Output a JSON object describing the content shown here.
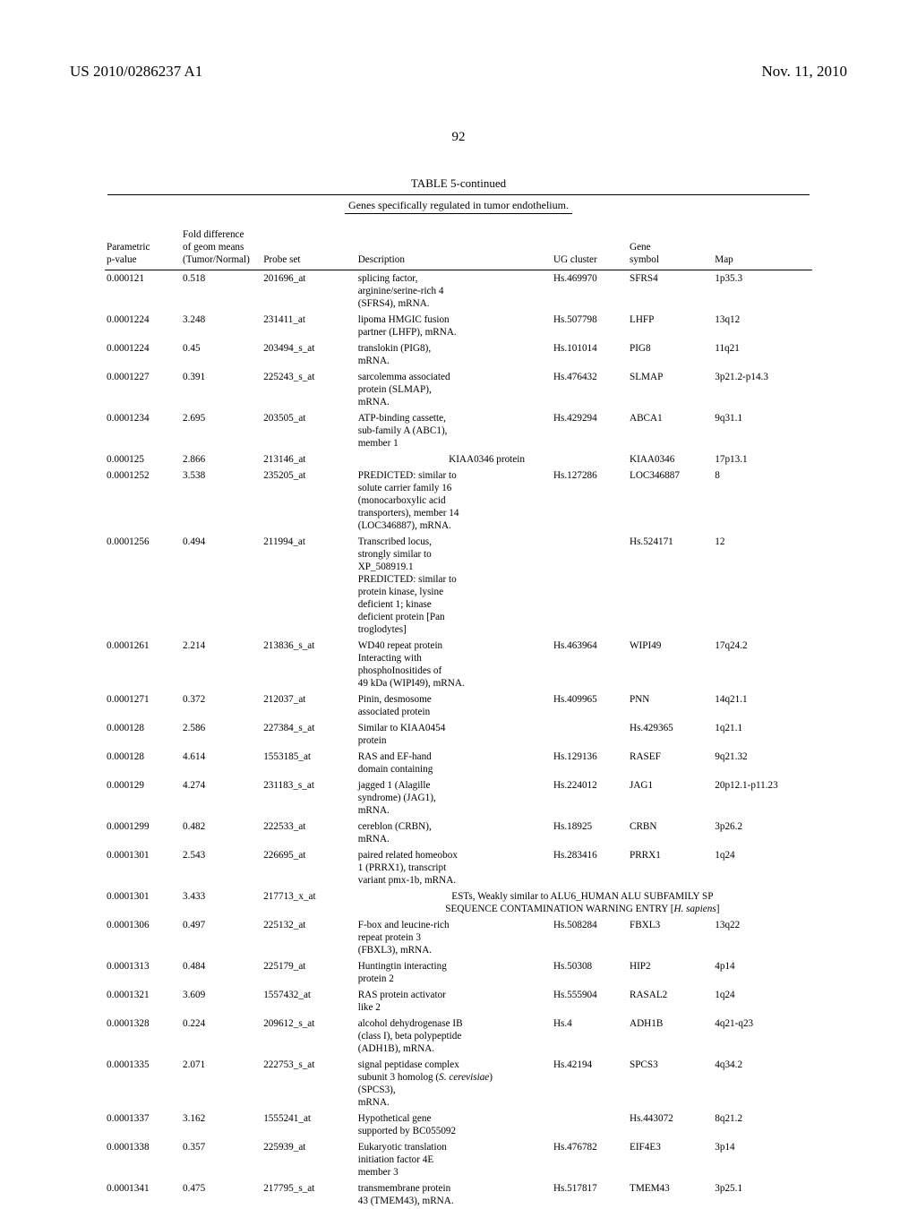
{
  "header": {
    "publication_number": "US 2010/0286237 A1",
    "publication_date": "Nov. 11, 2010",
    "page_number": "92"
  },
  "table": {
    "title": "TABLE 5-continued",
    "subtitle": "Genes specifically regulated in tumor endothelium.",
    "columns": {
      "parametric": "Parametric\np-value",
      "fold": "Fold difference\nof geom means\n(Tumor/Normal)",
      "probe": "Probe set",
      "description": "Description",
      "ugcluster": "UG cluster",
      "gene": "Gene\nsymbol",
      "map": "Map"
    },
    "rows": [
      {
        "p": "0.000121",
        "f": "0.518",
        "probe": "201696_at",
        "desc": "splicing factor,\narginine/serine-rich 4\n(SFRS4), mRNA.",
        "ug": "Hs.469970",
        "gene": "SFRS4",
        "map": "1p35.3"
      },
      {
        "p": "0.0001224",
        "f": "3.248",
        "probe": "231411_at",
        "desc": "lipoma HMGIC fusion\npartner (LHFP), mRNA.",
        "ug": "Hs.507798",
        "gene": "LHFP",
        "map": "13q12"
      },
      {
        "p": "0.0001224",
        "f": "0.45",
        "probe": "203494_s_at",
        "desc": "translokin (PIG8),\nmRNA.",
        "ug": "Hs.101014",
        "gene": "PIG8",
        "map": "11q21"
      },
      {
        "p": "0.0001227",
        "f": "0.391",
        "probe": "225243_s_at",
        "desc": "sarcolemma associated\nprotein (SLMAP),\nmRNA.",
        "ug": "Hs.476432",
        "gene": "SLMAP",
        "map": "3p21.2-p14.3"
      },
      {
        "p": "0.0001234",
        "f": "2.695",
        "probe": "203505_at",
        "desc": "ATP-binding cassette,\nsub-family A (ABC1),\nmember 1",
        "ug": "Hs.429294",
        "gene": "ABCA1",
        "map": "9q31.1"
      },
      {
        "p": "0.000125",
        "f": "2.866",
        "probe": "213146_at",
        "desc": "KIAA0346 protein",
        "ug": "",
        "gene": "KIAA0346",
        "map": "17p13.1",
        "desc_centered": true
      },
      {
        "p": "0.0001252",
        "f": "3.538",
        "probe": "235205_at",
        "desc": "PREDICTED: similar to\nsolute carrier family 16\n(monocarboxylic acid\ntransporters), member 14\n(LOC346887), mRNA.",
        "ug": "Hs.127286",
        "gene": "LOC346887",
        "map": "8"
      },
      {
        "p": "0.0001256",
        "f": "0.494",
        "probe": "211994_at",
        "desc": "Transcribed locus,\nstrongly similar to\nXP_508919.1\nPREDICTED: similar to\nprotein kinase, lysine\ndeficient 1; kinase\ndeficient protein [Pan\ntroglodytes]",
        "ug": "",
        "gene": "Hs.524171",
        "map": "12"
      },
      {
        "p": "0.0001261",
        "f": "2.214",
        "probe": "213836_s_at",
        "desc": "WD40 repeat protein\nInteracting with\nphosphoInositides of\n49 kDa (WIPI49), mRNA.",
        "ug": "Hs.463964",
        "gene": "WIPI49",
        "map": "17q24.2"
      },
      {
        "p": "0.0001271",
        "f": "0.372",
        "probe": "212037_at",
        "desc": "Pinin, desmosome\nassociated protein",
        "ug": "Hs.409965",
        "gene": "PNN",
        "map": "14q21.1"
      },
      {
        "p": "0.000128",
        "f": "2.586",
        "probe": "227384_s_at",
        "desc": "Similar to KIAA0454\nprotein",
        "ug": "",
        "gene": "Hs.429365",
        "map": "1q21.1"
      },
      {
        "p": "0.000128",
        "f": "4.614",
        "probe": "1553185_at",
        "desc": "RAS and EF-hand\ndomain containing",
        "ug": "Hs.129136",
        "gene": "RASEF",
        "map": "9q21.32"
      },
      {
        "p": "0.000129",
        "f": "4.274",
        "probe": "231183_s_at",
        "desc": "jagged 1 (Alagille\nsyndrome) (JAG1),\nmRNA.",
        "ug": "Hs.224012",
        "gene": "JAG1",
        "map": "20p12.1-p11.23"
      },
      {
        "p": "0.0001299",
        "f": "0.482",
        "probe": "222533_at",
        "desc": "cereblon (CRBN),\nmRNA.",
        "ug": "Hs.18925",
        "gene": "CRBN",
        "map": "3p26.2"
      },
      {
        "p": "0.0001301",
        "f": "2.543",
        "probe": "226695_at",
        "desc": "paired related homeobox\n1 (PRRX1), transcript\nvariant pmx-1b, mRNA.",
        "ug": "Hs.283416",
        "gene": "PRRX1",
        "map": "1q24"
      },
      {
        "p": "0.0001301",
        "f": "3.433",
        "probe": "217713_x_at",
        "desc": "ESTs, Weakly similar to ALU6_HUMAN ALU SUBFAMILY SP\nSEQUENCE CONTAMINATION WARNING ENTRY [H. sapiens]",
        "spanned": true
      },
      {
        "p": "0.0001306",
        "f": "0.497",
        "probe": "225132_at",
        "desc": "F-box and leucine-rich\nrepeat protein 3\n(FBXL3), mRNA.",
        "ug": "Hs.508284",
        "gene": "FBXL3",
        "map": "13q22"
      },
      {
        "p": "0.0001313",
        "f": "0.484",
        "probe": "225179_at",
        "desc": "Huntingtin interacting\nprotein 2",
        "ug": "Hs.50308",
        "gene": "HIP2",
        "map": "4p14"
      },
      {
        "p": "0.0001321",
        "f": "3.609",
        "probe": "1557432_at",
        "desc": "RAS protein activator\nlike 2",
        "ug": "Hs.555904",
        "gene": "RASAL2",
        "map": "1q24"
      },
      {
        "p": "0.0001328",
        "f": "0.224",
        "probe": "209612_s_at",
        "desc": "alcohol dehydrogenase IB\n(class I), beta polypeptide\n(ADH1B), mRNA.",
        "ug": "Hs.4",
        "gene": "ADH1B",
        "map": "4q21-q23"
      },
      {
        "p": "0.0001335",
        "f": "2.071",
        "probe": "222753_s_at",
        "desc": "signal peptidase complex\nsubunit 3 homolog (S. cerevisiae)\n(SPCS3),\nmRNA.",
        "ug": "Hs.42194",
        "gene": "SPCS3",
        "map": "4q34.2",
        "italic": true
      },
      {
        "p": "0.0001337",
        "f": "3.162",
        "probe": "1555241_at",
        "desc": "Hypothetical gene\nsupported by BC055092",
        "ug": "",
        "gene": "Hs.443072",
        "map": "8q21.2"
      },
      {
        "p": "0.0001338",
        "f": "0.357",
        "probe": "225939_at",
        "desc": "Eukaryotic translation\ninitiation factor 4E\nmember 3",
        "ug": "Hs.476782",
        "gene": "EIF4E3",
        "map": "3p14"
      },
      {
        "p": "0.0001341",
        "f": "0.475",
        "probe": "217795_s_at",
        "desc": "transmembrane protein\n43 (TMEM43), mRNA.",
        "ug": "Hs.517817",
        "gene": "TMEM43",
        "map": "3p25.1"
      }
    ]
  }
}
